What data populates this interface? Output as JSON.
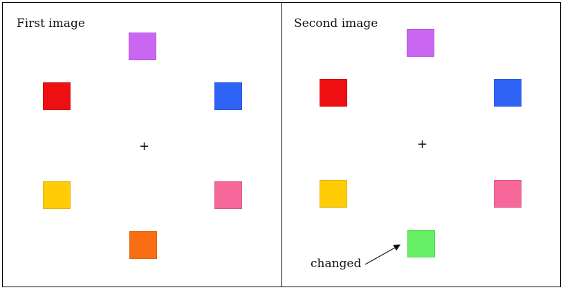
{
  "panels": {
    "first": {
      "title": "First image",
      "fixation": "+",
      "squares": {
        "top": {
          "color": "#c966f2"
        },
        "upper_left": {
          "color": "#ee0f12"
        },
        "upper_right": {
          "color": "#2f63f5"
        },
        "lower_left": {
          "color": "#ffcc05"
        },
        "lower_right": {
          "color": "#f76799"
        },
        "bottom": {
          "color": "#f96e13"
        }
      }
    },
    "second": {
      "title": "Second image",
      "fixation": "+",
      "squares": {
        "top": {
          "color": "#c966f2"
        },
        "upper_left": {
          "color": "#ee0f12"
        },
        "upper_right": {
          "color": "#2f63f5"
        },
        "lower_left": {
          "color": "#ffcc05"
        },
        "lower_right": {
          "color": "#f76799"
        },
        "bottom": {
          "color": "#67f065"
        }
      },
      "annotation": "changed"
    }
  }
}
